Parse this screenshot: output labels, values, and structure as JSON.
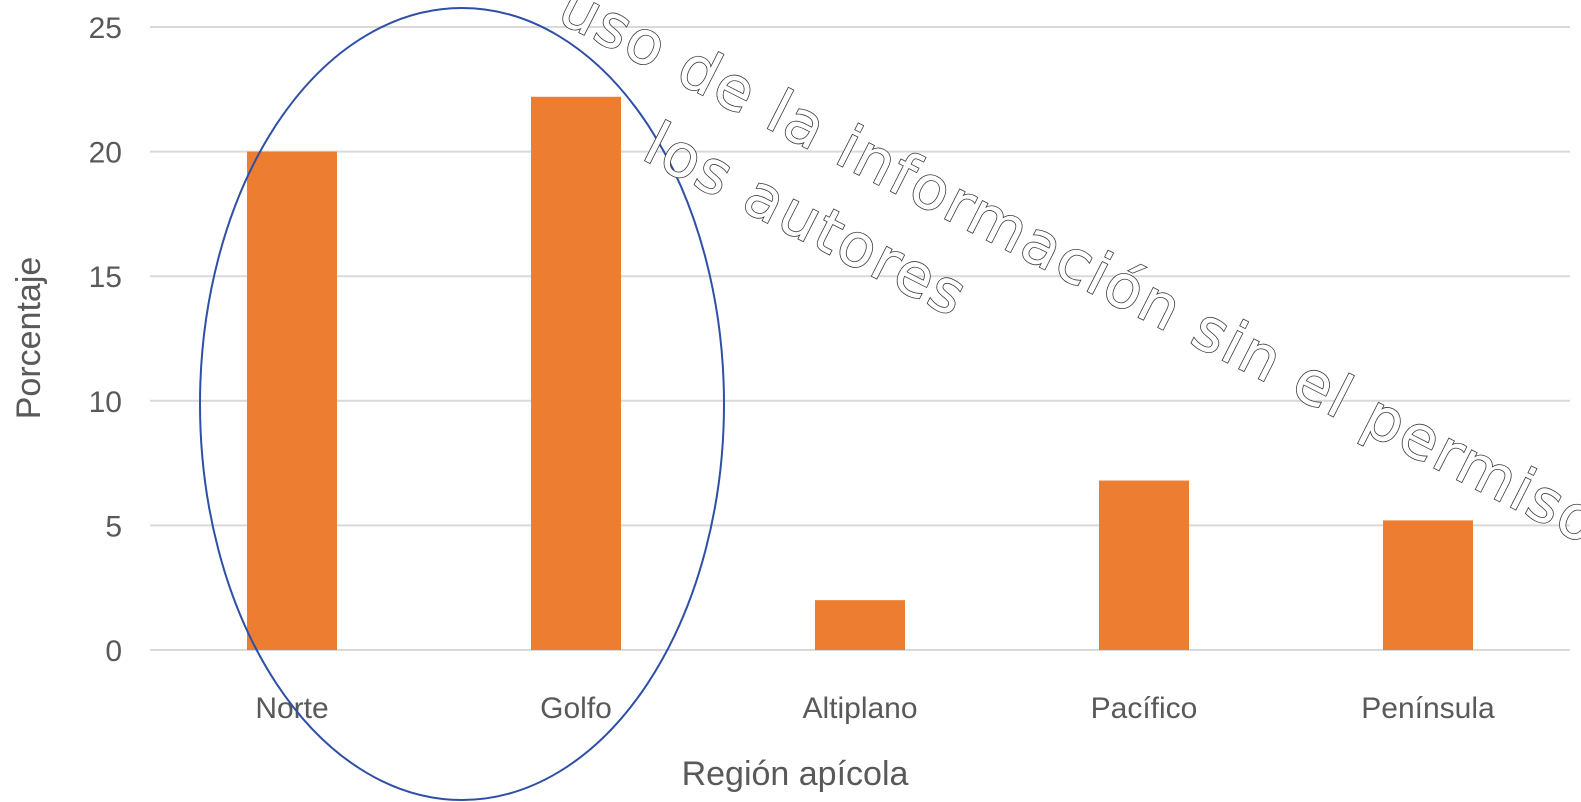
{
  "chart_data": {
    "type": "bar",
    "categories": [
      "Norte",
      "Golfo",
      "Altiplano",
      "Pacífico",
      "Península"
    ],
    "values": [
      20,
      22.2,
      2,
      6.8,
      5.2
    ],
    "xlabel": "Región apícola",
    "ylabel": "Porcentaje",
    "ylim": [
      0,
      25
    ],
    "yticks": [
      0,
      5,
      10,
      15,
      20,
      25
    ],
    "grid": true,
    "bar_color": "#ED7D31",
    "grid_color": "#d9d9d9"
  },
  "annotation": {
    "highlight": "ellipse around Norte and Golfo",
    "highlight_color": "#2e4fa6"
  },
  "watermark": {
    "line1": "uso de la información sin el permiso de",
    "line2": "los autores"
  }
}
